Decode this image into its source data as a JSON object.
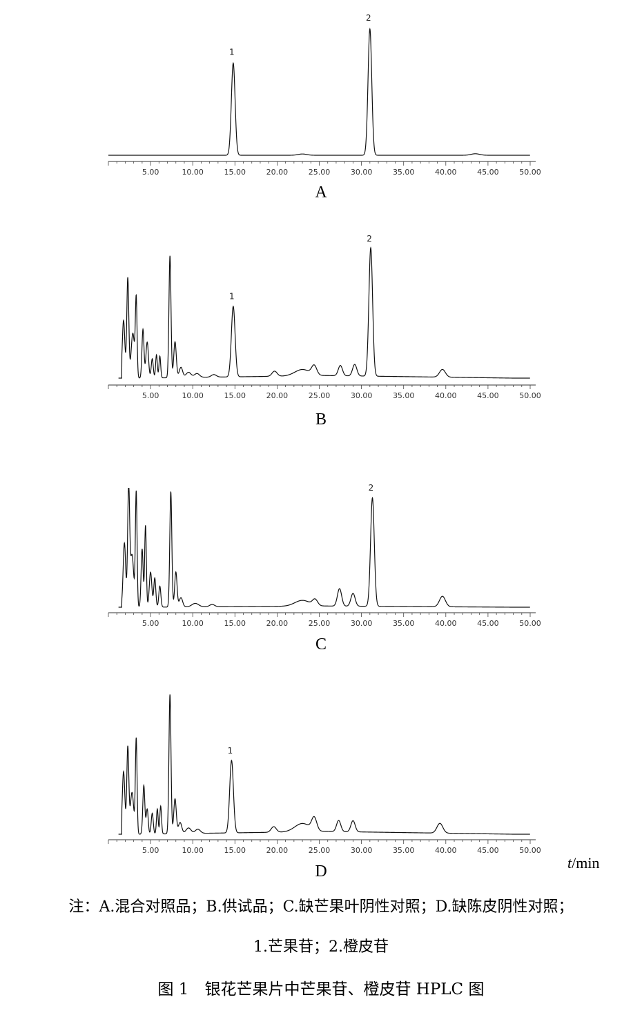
{
  "chart_data": [
    {
      "type": "line",
      "panel": "A",
      "xlim": [
        0,
        50
      ],
      "x_ticks": [
        "5.00",
        "10.00",
        "15.00",
        "20.00",
        "25.00",
        "30.00",
        "35.00",
        "40.00",
        "45.00",
        "50.00"
      ],
      "peaks": [
        {
          "label": "1",
          "x": 14.8,
          "height": 0.73
        },
        {
          "label": "2",
          "x": 31.0,
          "height": 1.0
        }
      ]
    },
    {
      "type": "line",
      "panel": "B",
      "xlim": [
        0,
        50
      ],
      "x_ticks": [
        "5.00",
        "10.00",
        "15.00",
        "20.00",
        "25.00",
        "30.00",
        "35.00",
        "40.00",
        "45.00",
        "50.00"
      ],
      "peaks": [
        {
          "label": "1",
          "x": 14.8,
          "height": 0.55
        },
        {
          "label": "2",
          "x": 31.1,
          "height": 1.0
        }
      ]
    },
    {
      "type": "line",
      "panel": "C",
      "xlim": [
        0,
        50
      ],
      "x_ticks": [
        "5.00",
        "10.00",
        "15.00",
        "20.00",
        "25.00",
        "30.00",
        "35.00",
        "40.00",
        "45.00",
        "50.00"
      ],
      "peaks": [
        {
          "label": "2",
          "x": 31.3,
          "height": 0.93
        }
      ]
    },
    {
      "type": "line",
      "panel": "D",
      "xlim": [
        0,
        50
      ],
      "x_ticks": [
        "5.00",
        "10.00",
        "15.00",
        "20.00",
        "25.00",
        "30.00",
        "35.00",
        "40.00",
        "45.00",
        "50.00"
      ],
      "peaks": [
        {
          "label": "1",
          "x": 14.6,
          "height": 0.52
        }
      ]
    }
  ],
  "panel_letters": {
    "a": "A",
    "b": "B",
    "c": "C",
    "d": "D"
  },
  "xaxis_unit": {
    "symbol": "t",
    "unit": "/min"
  },
  "note": {
    "line1": "注：A.混合对照品；B.供试品；C.缺芒果叶阴性对照；D.缺陈皮阴性对照；",
    "line2": "1.芒果苷；2.橙皮苷"
  },
  "caption": "图 1　银花芒果片中芒果苷、橙皮苷 HPLC 图"
}
